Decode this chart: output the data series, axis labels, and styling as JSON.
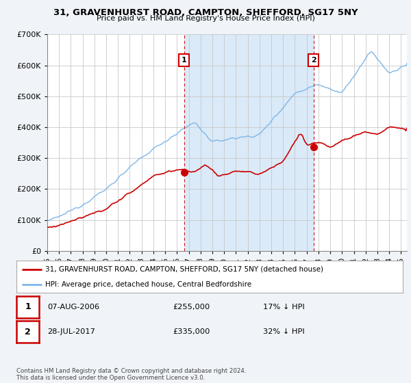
{
  "title_line1": "31, GRAVENHURST ROAD, CAMPTON, SHEFFORD, SG17 5NY",
  "title_line2": "Price paid vs. HM Land Registry's House Price Index (HPI)",
  "ylim": [
    0,
    700000
  ],
  "yticks": [
    0,
    100000,
    200000,
    300000,
    400000,
    500000,
    600000,
    700000
  ],
  "ytick_labels": [
    "£0",
    "£100K",
    "£200K",
    "£300K",
    "£400K",
    "£500K",
    "£600K",
    "£700K"
  ],
  "background_color": "#f0f4f8",
  "plot_bg_color": "#ffffff",
  "grid_color": "#c8c8c8",
  "hpi_color": "#7eb6e8",
  "hpi_fill_color": "#daeaf8",
  "price_color": "#cc0000",
  "transaction1_x": 2006.6,
  "transaction1_y": 255000,
  "transaction1_label": "1",
  "transaction2_x": 2017.58,
  "transaction2_y": 335000,
  "transaction2_label": "2",
  "legend_line1": "31, GRAVENHURST ROAD, CAMPTON, SHEFFORD, SG17 5NY (detached house)",
  "legend_line2": "HPI: Average price, detached house, Central Bedfordshire",
  "table_row1_num": "1",
  "table_row1_date": "07-AUG-2006",
  "table_row1_price": "£255,000",
  "table_row1_hpi": "17% ↓ HPI",
  "table_row2_num": "2",
  "table_row2_date": "28-JUL-2017",
  "table_row2_price": "£335,000",
  "table_row2_hpi": "32% ↓ HPI",
  "footer": "Contains HM Land Registry data © Crown copyright and database right 2024.\nThis data is licensed under the Open Government Licence v3.0.",
  "xmin": 1995,
  "xmax": 2025.5
}
